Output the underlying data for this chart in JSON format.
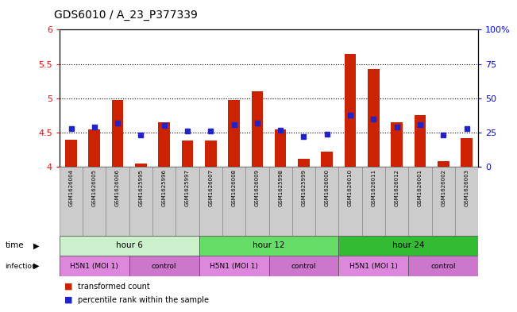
{
  "title": "GDS6010 / A_23_P377339",
  "samples": [
    "GSM1626004",
    "GSM1626005",
    "GSM1626006",
    "GSM1625995",
    "GSM1625996",
    "GSM1625997",
    "GSM1626007",
    "GSM1626008",
    "GSM1626009",
    "GSM1625998",
    "GSM1625999",
    "GSM1626000",
    "GSM1626010",
    "GSM1626011",
    "GSM1626012",
    "GSM1626001",
    "GSM1626002",
    "GSM1626003"
  ],
  "red_values": [
    4.4,
    4.55,
    4.98,
    4.05,
    4.65,
    4.38,
    4.38,
    4.98,
    5.1,
    4.55,
    4.12,
    4.22,
    5.65,
    5.42,
    4.65,
    4.75,
    4.08,
    4.42
  ],
  "blue_values": [
    28,
    29,
    32,
    23,
    30,
    26,
    26,
    31,
    32,
    27,
    22,
    24,
    38,
    35,
    29,
    31,
    23,
    28
  ],
  "ylim_left": [
    4.0,
    6.0
  ],
  "ylim_right": [
    0,
    100
  ],
  "yticks_left": [
    4.0,
    4.5,
    5.0,
    5.5,
    6.0
  ],
  "yticks_right": [
    0,
    25,
    50,
    75,
    100
  ],
  "ytick_labels_left": [
    "4",
    "4.5",
    "5",
    "5.5",
    "6"
  ],
  "ytick_labels_right": [
    "0",
    "25",
    "50",
    "75",
    "100%"
  ],
  "hlines": [
    4.5,
    5.0,
    5.5
  ],
  "bar_color": "#cc2200",
  "dot_color": "#2222cc",
  "sample_bg_color": "#cccccc",
  "time_groups": [
    {
      "label": "hour 6",
      "start": 0,
      "end": 6,
      "color": "#ccf0cc"
    },
    {
      "label": "hour 12",
      "start": 6,
      "end": 12,
      "color": "#66dd66"
    },
    {
      "label": "hour 24",
      "start": 12,
      "end": 18,
      "color": "#33bb33"
    }
  ],
  "infect_groups": [
    {
      "label": "H5N1 (MOI 1)",
      "start": 0,
      "end": 3,
      "color": "#dd88dd"
    },
    {
      "label": "control",
      "start": 3,
      "end": 6,
      "color": "#cc77cc"
    },
    {
      "label": "H5N1 (MOI 1)",
      "start": 6,
      "end": 9,
      "color": "#dd88dd"
    },
    {
      "label": "control",
      "start": 9,
      "end": 12,
      "color": "#cc77cc"
    },
    {
      "label": "H5N1 (MOI 1)",
      "start": 12,
      "end": 15,
      "color": "#dd88dd"
    },
    {
      "label": "control",
      "start": 15,
      "end": 18,
      "color": "#cc77cc"
    }
  ],
  "background_color": "#ffffff"
}
